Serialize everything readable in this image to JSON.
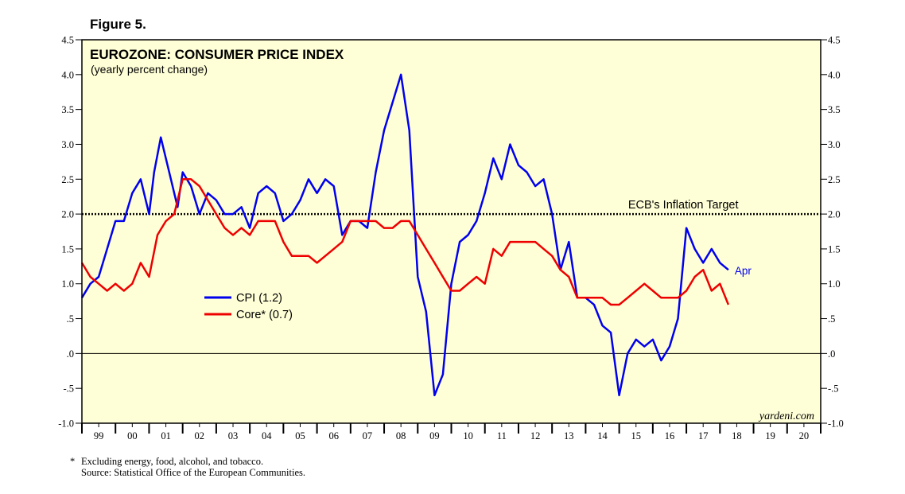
{
  "figure_label": "Figure 5.",
  "chart_data": {
    "type": "line",
    "title": "EUROZONE: CONSUMER PRICE INDEX",
    "subtitle": "(yearly percent change)",
    "ylim": [
      -1.0,
      4.5
    ],
    "y_ticks": [
      "4.5",
      "4.0",
      "3.5",
      "3.0",
      "2.5",
      "2.0",
      "1.5",
      "1.0",
      ".5",
      ".0",
      "-.5",
      "-1.0"
    ],
    "y_tick_values": [
      4.5,
      4.0,
      3.5,
      3.0,
      2.5,
      2.0,
      1.5,
      1.0,
      0.5,
      0.0,
      -0.5,
      -1.0
    ],
    "x_range": [
      1999.0,
      2021.0
    ],
    "x_tick_labels": [
      "99",
      "00",
      "01",
      "02",
      "03",
      "04",
      "05",
      "06",
      "07",
      "08",
      "09",
      "10",
      "11",
      "12",
      "13",
      "14",
      "15",
      "16",
      "17",
      "18",
      "19",
      "20"
    ],
    "reference_line": {
      "value": 2.0,
      "label": "ECB's Inflation Target"
    },
    "legend_placement": "center-left",
    "end_label": "Apr",
    "watermark": "yardeni.com",
    "series": [
      {
        "name": "CPI (1.2)",
        "color": "#0000ee",
        "points": [
          [
            1999.0,
            0.8
          ],
          [
            1999.25,
            1.0
          ],
          [
            1999.5,
            1.1
          ],
          [
            1999.75,
            1.5
          ],
          [
            2000.0,
            1.9
          ],
          [
            2000.25,
            1.9
          ],
          [
            2000.5,
            2.3
          ],
          [
            2000.75,
            2.5
          ],
          [
            2001.0,
            2.0
          ],
          [
            2001.15,
            2.6
          ],
          [
            2001.35,
            3.1
          ],
          [
            2001.6,
            2.6
          ],
          [
            2001.85,
            2.1
          ],
          [
            2002.0,
            2.6
          ],
          [
            2002.25,
            2.4
          ],
          [
            2002.5,
            2.0
          ],
          [
            2002.75,
            2.3
          ],
          [
            2003.0,
            2.2
          ],
          [
            2003.25,
            2.0
          ],
          [
            2003.5,
            2.0
          ],
          [
            2003.75,
            2.1
          ],
          [
            2004.0,
            1.8
          ],
          [
            2004.25,
            2.3
          ],
          [
            2004.5,
            2.4
          ],
          [
            2004.75,
            2.3
          ],
          [
            2005.0,
            1.9
          ],
          [
            2005.25,
            2.0
          ],
          [
            2005.5,
            2.2
          ],
          [
            2005.75,
            2.5
          ],
          [
            2006.0,
            2.3
          ],
          [
            2006.25,
            2.5
          ],
          [
            2006.5,
            2.4
          ],
          [
            2006.75,
            1.7
          ],
          [
            2007.0,
            1.9
          ],
          [
            2007.25,
            1.9
          ],
          [
            2007.5,
            1.8
          ],
          [
            2007.75,
            2.6
          ],
          [
            2008.0,
            3.2
          ],
          [
            2008.25,
            3.6
          ],
          [
            2008.5,
            4.0
          ],
          [
            2008.75,
            3.2
          ],
          [
            2009.0,
            1.1
          ],
          [
            2009.25,
            0.6
          ],
          [
            2009.5,
            -0.6
          ],
          [
            2009.75,
            -0.3
          ],
          [
            2010.0,
            1.0
          ],
          [
            2010.25,
            1.6
          ],
          [
            2010.5,
            1.7
          ],
          [
            2010.75,
            1.9
          ],
          [
            2011.0,
            2.3
          ],
          [
            2011.25,
            2.8
          ],
          [
            2011.5,
            2.5
          ],
          [
            2011.75,
            3.0
          ],
          [
            2012.0,
            2.7
          ],
          [
            2012.25,
            2.6
          ],
          [
            2012.5,
            2.4
          ],
          [
            2012.75,
            2.5
          ],
          [
            2013.0,
            2.0
          ],
          [
            2013.25,
            1.2
          ],
          [
            2013.5,
            1.6
          ],
          [
            2013.75,
            0.8
          ],
          [
            2014.0,
            0.8
          ],
          [
            2014.25,
            0.7
          ],
          [
            2014.5,
            0.4
          ],
          [
            2014.75,
            0.3
          ],
          [
            2015.0,
            -0.6
          ],
          [
            2015.25,
            0.0
          ],
          [
            2015.5,
            0.2
          ],
          [
            2015.75,
            0.1
          ],
          [
            2016.0,
            0.2
          ],
          [
            2016.25,
            -0.1
          ],
          [
            2016.5,
            0.1
          ],
          [
            2016.75,
            0.5
          ],
          [
            2017.0,
            1.8
          ],
          [
            2017.25,
            1.5
          ],
          [
            2017.5,
            1.3
          ],
          [
            2017.75,
            1.5
          ],
          [
            2018.0,
            1.3
          ],
          [
            2018.25,
            1.2
          ]
        ]
      },
      {
        "name": "Core* (0.7)",
        "color": "#ee0000",
        "points": [
          [
            1999.0,
            1.3
          ],
          [
            1999.25,
            1.1
          ],
          [
            1999.5,
            1.0
          ],
          [
            1999.75,
            0.9
          ],
          [
            2000.0,
            1.0
          ],
          [
            2000.25,
            0.9
          ],
          [
            2000.5,
            1.0
          ],
          [
            2000.75,
            1.3
          ],
          [
            2001.0,
            1.1
          ],
          [
            2001.25,
            1.7
          ],
          [
            2001.5,
            1.9
          ],
          [
            2001.75,
            2.0
          ],
          [
            2002.0,
            2.5
          ],
          [
            2002.25,
            2.5
          ],
          [
            2002.5,
            2.4
          ],
          [
            2002.75,
            2.2
          ],
          [
            2003.0,
            2.0
          ],
          [
            2003.25,
            1.8
          ],
          [
            2003.5,
            1.7
          ],
          [
            2003.75,
            1.8
          ],
          [
            2004.0,
            1.7
          ],
          [
            2004.25,
            1.9
          ],
          [
            2004.5,
            1.9
          ],
          [
            2004.75,
            1.9
          ],
          [
            2005.0,
            1.6
          ],
          [
            2005.25,
            1.4
          ],
          [
            2005.5,
            1.4
          ],
          [
            2005.75,
            1.4
          ],
          [
            2006.0,
            1.3
          ],
          [
            2006.25,
            1.4
          ],
          [
            2006.5,
            1.5
          ],
          [
            2006.75,
            1.6
          ],
          [
            2007.0,
            1.9
          ],
          [
            2007.25,
            1.9
          ],
          [
            2007.5,
            1.9
          ],
          [
            2007.75,
            1.9
          ],
          [
            2008.0,
            1.8
          ],
          [
            2008.25,
            1.8
          ],
          [
            2008.5,
            1.9
          ],
          [
            2008.75,
            1.9
          ],
          [
            2009.0,
            1.7
          ],
          [
            2009.25,
            1.5
          ],
          [
            2009.5,
            1.3
          ],
          [
            2009.75,
            1.1
          ],
          [
            2010.0,
            0.9
          ],
          [
            2010.25,
            0.9
          ],
          [
            2010.5,
            1.0
          ],
          [
            2010.75,
            1.1
          ],
          [
            2011.0,
            1.0
          ],
          [
            2011.25,
            1.5
          ],
          [
            2011.5,
            1.4
          ],
          [
            2011.75,
            1.6
          ],
          [
            2012.0,
            1.6
          ],
          [
            2012.25,
            1.6
          ],
          [
            2012.5,
            1.6
          ],
          [
            2012.75,
            1.5
          ],
          [
            2013.0,
            1.4
          ],
          [
            2013.25,
            1.2
          ],
          [
            2013.5,
            1.1
          ],
          [
            2013.75,
            0.8
          ],
          [
            2014.0,
            0.8
          ],
          [
            2014.25,
            0.8
          ],
          [
            2014.5,
            0.8
          ],
          [
            2014.75,
            0.7
          ],
          [
            2015.0,
            0.7
          ],
          [
            2015.25,
            0.8
          ],
          [
            2015.5,
            0.9
          ],
          [
            2015.75,
            1.0
          ],
          [
            2016.0,
            0.9
          ],
          [
            2016.25,
            0.8
          ],
          [
            2016.5,
            0.8
          ],
          [
            2016.75,
            0.8
          ],
          [
            2017.0,
            0.9
          ],
          [
            2017.25,
            1.1
          ],
          [
            2017.5,
            1.2
          ],
          [
            2017.75,
            0.9
          ],
          [
            2018.0,
            1.0
          ],
          [
            2018.25,
            0.7
          ]
        ]
      }
    ]
  },
  "footnotes": {
    "marker": "*",
    "note": "Excluding energy, food, alcohol, and tobacco.",
    "source": "Source: Statistical Office of the European Communities."
  },
  "colors": {
    "plot_background": "#ffffd7",
    "cpi": "#0000ee",
    "core": "#ee0000"
  }
}
